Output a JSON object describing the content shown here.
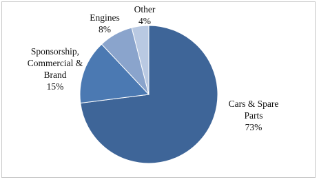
{
  "chart_data": {
    "type": "pie",
    "categories": [
      "Cars & Spare Parts",
      "Sponsorship, Commercial & Brand",
      "Engines",
      "Other"
    ],
    "values": [
      73,
      15,
      8,
      4
    ],
    "value_labels": [
      "73%",
      "15%",
      "8%",
      "4%"
    ],
    "colors": [
      "#3e6598",
      "#4b79b2",
      "#8aa4cc",
      "#b9c9e2"
    ]
  }
}
